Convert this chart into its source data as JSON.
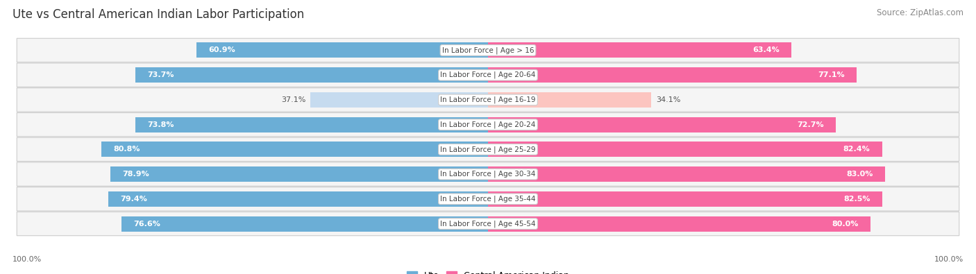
{
  "title": "Ute vs Central American Indian Labor Participation",
  "source": "Source: ZipAtlas.com",
  "categories": [
    "In Labor Force | Age > 16",
    "In Labor Force | Age 20-64",
    "In Labor Force | Age 16-19",
    "In Labor Force | Age 20-24",
    "In Labor Force | Age 25-29",
    "In Labor Force | Age 30-34",
    "In Labor Force | Age 35-44",
    "In Labor Force | Age 45-54"
  ],
  "ute_values": [
    60.9,
    73.7,
    37.1,
    73.8,
    80.8,
    78.9,
    79.4,
    76.6
  ],
  "central_values": [
    63.4,
    77.1,
    34.1,
    72.7,
    82.4,
    83.0,
    82.5,
    80.0
  ],
  "ute_color_strong": "#6baed6",
  "ute_color_light": "#c6dbef",
  "central_color_strong": "#f768a1",
  "central_color_light": "#fcc5c0",
  "bg_color": "#ffffff",
  "row_bg_even": "#f4f4f4",
  "row_bg_odd": "#fafafa",
  "label_white": "#ffffff",
  "label_dark": "#555555",
  "max_val": 100.0,
  "bar_height": 0.62,
  "legend_ute_label": "Ute",
  "legend_central_label": "Central American Indian",
  "bottom_left_label": "100.0%",
  "bottom_right_label": "100.0%",
  "title_fontsize": 12,
  "source_fontsize": 8.5,
  "value_fontsize": 8,
  "cat_fontsize": 7.5,
  "legend_fontsize": 9,
  "light_row_index": 2
}
